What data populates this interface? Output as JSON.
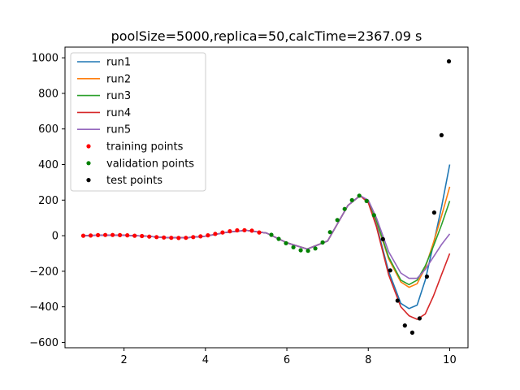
{
  "chart_data": {
    "type": "line",
    "title": "poolSize=5000,replica=50,calcTime=2367.09 s",
    "xlabel": "",
    "ylabel": "",
    "xlim": [
      0.55,
      10.45
    ],
    "ylim": [
      -630,
      1060
    ],
    "xticks": [
      2,
      4,
      6,
      8,
      10
    ],
    "yticks": [
      -600,
      -400,
      -200,
      0,
      200,
      400,
      600,
      800,
      1000
    ],
    "grid": false,
    "legend_position": "top-left",
    "series": [
      {
        "name": "run1",
        "color": "#1f77b4",
        "kind": "line",
        "x": [
          1,
          1.5,
          2,
          2.5,
          3,
          3.5,
          4,
          4.5,
          5,
          5.5,
          6,
          6.5,
          7,
          7.5,
          7.8,
          8,
          8.2,
          8.5,
          8.8,
          9.0,
          9.2,
          9.4,
          9.6,
          9.8,
          10
        ],
        "y": [
          0,
          3,
          2,
          -2,
          -10,
          -12,
          -3,
          18,
          30,
          15,
          -40,
          -75,
          -30,
          170,
          225,
          190,
          60,
          -200,
          -380,
          -410,
          -390,
          -250,
          -50,
          160,
          400
        ]
      },
      {
        "name": "run2",
        "color": "#ff7f0e",
        "kind": "line",
        "x": [
          1,
          1.5,
          2,
          2.5,
          3,
          3.5,
          4,
          4.5,
          5,
          5.5,
          6,
          6.5,
          7,
          7.5,
          7.8,
          8,
          8.2,
          8.5,
          8.8,
          9.0,
          9.2,
          9.4,
          9.6,
          9.8,
          10
        ],
        "y": [
          0,
          3,
          2,
          -2,
          -10,
          -12,
          -3,
          18,
          30,
          15,
          -40,
          -75,
          -30,
          170,
          225,
          195,
          80,
          -130,
          -260,
          -290,
          -270,
          -180,
          -40,
          110,
          275
        ]
      },
      {
        "name": "run3",
        "color": "#2ca02c",
        "kind": "line",
        "x": [
          1,
          1.5,
          2,
          2.5,
          3,
          3.5,
          4,
          4.5,
          5,
          5.5,
          6,
          6.5,
          7,
          7.5,
          7.8,
          8,
          8.2,
          8.5,
          8.8,
          9.0,
          9.2,
          9.4,
          9.6,
          9.8,
          10
        ],
        "y": [
          0,
          3,
          2,
          -2,
          -10,
          -12,
          -3,
          18,
          30,
          15,
          -40,
          -75,
          -30,
          170,
          225,
          195,
          85,
          -120,
          -250,
          -275,
          -250,
          -170,
          -60,
          60,
          195
        ]
      },
      {
        "name": "run4",
        "color": "#d62728",
        "kind": "line",
        "x": [
          1,
          1.5,
          2,
          2.5,
          3,
          3.5,
          4,
          4.5,
          5,
          5.5,
          6,
          6.5,
          7,
          7.5,
          7.8,
          8,
          8.2,
          8.5,
          8.8,
          9.0,
          9.2,
          9.4,
          9.6,
          9.8,
          10
        ],
        "y": [
          0,
          3,
          2,
          -2,
          -10,
          -12,
          -3,
          18,
          30,
          15,
          -40,
          -75,
          -30,
          170,
          225,
          185,
          50,
          -220,
          -400,
          -450,
          -470,
          -440,
          -340,
          -220,
          -100
        ]
      },
      {
        "name": "run5",
        "color": "#9467bd",
        "kind": "line",
        "x": [
          1,
          1.5,
          2,
          2.5,
          3,
          3.5,
          4,
          4.5,
          5,
          5.5,
          6,
          6.5,
          7,
          7.5,
          7.8,
          8,
          8.2,
          8.5,
          8.8,
          9.0,
          9.2,
          9.4,
          9.6,
          9.8,
          10
        ],
        "y": [
          0,
          3,
          2,
          -2,
          -10,
          -12,
          -3,
          18,
          30,
          15,
          -40,
          -75,
          -30,
          170,
          225,
          200,
          100,
          -90,
          -210,
          -240,
          -240,
          -190,
          -120,
          -50,
          10
        ]
      },
      {
        "name": "training points",
        "color": "#ff0000",
        "kind": "points",
        "x": [
          1.0,
          1.18,
          1.36,
          1.54,
          1.72,
          1.9,
          2.08,
          2.26,
          2.44,
          2.62,
          2.8,
          2.98,
          3.16,
          3.34,
          3.52,
          3.7,
          3.88,
          4.06,
          4.24,
          4.42,
          4.6,
          4.78,
          4.96,
          5.14,
          5.32
        ],
        "y": [
          0,
          1,
          3,
          4,
          4,
          3,
          2,
          0,
          -2,
          -5,
          -8,
          -10,
          -12,
          -13,
          -12,
          -8,
          -4,
          2,
          10,
          18,
          25,
          30,
          31,
          28,
          18
        ]
      },
      {
        "name": "validation points",
        "color": "#008000",
        "kind": "points",
        "x": [
          5.62,
          5.8,
          5.98,
          6.16,
          6.34,
          6.52,
          6.7,
          6.88,
          7.06,
          7.24,
          7.42,
          7.6,
          7.78,
          7.96,
          8.14
        ],
        "y": [
          5,
          -18,
          -42,
          -65,
          -82,
          -85,
          -72,
          -38,
          20,
          88,
          150,
          200,
          225,
          195,
          115
        ]
      },
      {
        "name": "test points",
        "color": "#000000",
        "kind": "points",
        "x": [
          8.36,
          8.54,
          8.72,
          8.9,
          9.08,
          9.26,
          9.44,
          9.62,
          9.8,
          9.98
        ],
        "y": [
          -20,
          -195,
          -365,
          -505,
          -545,
          -465,
          -230,
          130,
          565,
          980
        ]
      }
    ]
  }
}
